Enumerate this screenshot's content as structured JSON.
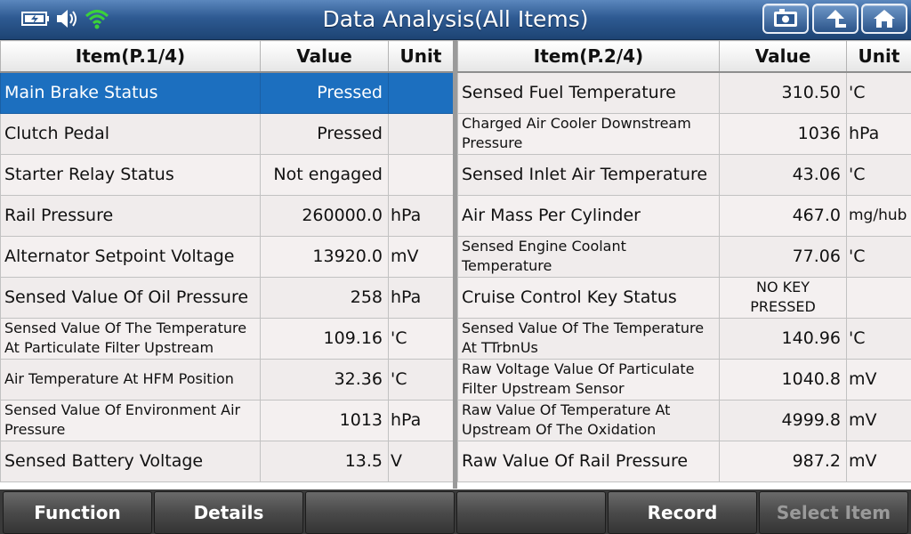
{
  "header": {
    "title": "Data Analysis(All Items)",
    "icons": [
      "battery-icon",
      "speaker-icon",
      "wifi-icon"
    ],
    "buttons": [
      "screenshot-icon",
      "back-arrow-icon",
      "home-icon"
    ]
  },
  "left": {
    "headers": {
      "item": "Item(P.1/4)",
      "value": "Value",
      "unit": "Unit"
    },
    "rows": [
      {
        "item": "Main Brake Status",
        "value": "Pressed",
        "unit": ""
      },
      {
        "item": "Clutch Pedal",
        "value": "Pressed",
        "unit": ""
      },
      {
        "item": "Starter Relay Status",
        "value": "Not engaged",
        "unit": ""
      },
      {
        "item": "Rail Pressure",
        "value": "260000.0",
        "unit": "hPa"
      },
      {
        "item": "Alternator Setpoint Voltage",
        "value": "13920.0",
        "unit": "mV"
      },
      {
        "item": "Sensed Value Of Oil Pressure",
        "value": "258",
        "unit": "hPa"
      },
      {
        "item": "Sensed Value Of The Temperature At Particulate Filter Upstream",
        "value": "109.16",
        "unit": "'C"
      },
      {
        "item": "Air Temperature At HFM Position",
        "value": "32.36",
        "unit": "'C"
      },
      {
        "item": "Sensed Value Of Environment Air Pressure",
        "value": "1013",
        "unit": "hPa"
      },
      {
        "item": "Sensed Battery Voltage",
        "value": "13.5",
        "unit": "V"
      }
    ]
  },
  "right": {
    "headers": {
      "item": "Item(P.2/4)",
      "value": "Value",
      "unit": "Unit"
    },
    "rows": [
      {
        "item": "Sensed Fuel Temperature",
        "value": "310.50",
        "unit": "'C"
      },
      {
        "item": "Charged Air Cooler Downstream Pressure",
        "value": "1036",
        "unit": "hPa"
      },
      {
        "item": "Sensed Inlet Air Temperature",
        "value": "43.06",
        "unit": "'C"
      },
      {
        "item": "Air Mass Per Cylinder",
        "value": "467.0",
        "unit": "mg/hub"
      },
      {
        "item": "Sensed Engine Coolant Temperature",
        "value": "77.06",
        "unit": "'C"
      },
      {
        "item": "Cruise Control Key Status",
        "value": "NO KEY PRESSED",
        "unit": ""
      },
      {
        "item": "Sensed Value Of The Temperature At TTrbnUs",
        "value": "140.96",
        "unit": "'C"
      },
      {
        "item": "Raw Voltage Value Of Particulate Filter Upstream Sensor",
        "value": "1040.8",
        "unit": "mV"
      },
      {
        "item": "Raw Value Of Temperature At Upstream Of The Oxidation",
        "value": "4999.8",
        "unit": "mV"
      },
      {
        "item": "Raw Value Of Rail Pressure",
        "value": "987.2",
        "unit": "mV"
      }
    ]
  },
  "footer": {
    "function": "Function",
    "details": "Details",
    "blank1": "",
    "blank2": "",
    "record": "Record",
    "select_item": "Select Item"
  }
}
